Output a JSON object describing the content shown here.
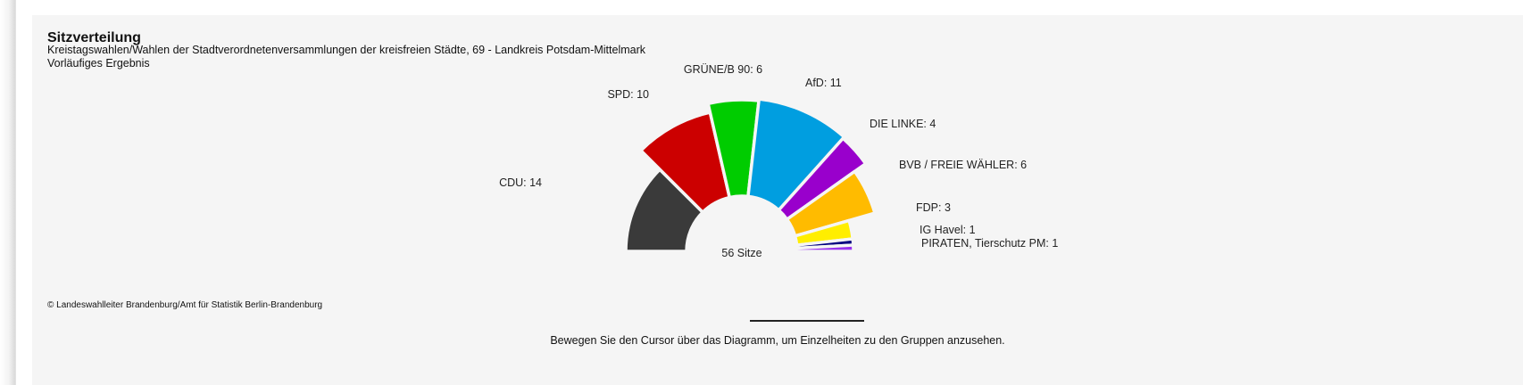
{
  "header": {
    "title": "Sitzverteilung",
    "subtitle": "Kreistagswahlen/Wahlen der Stadtverordnetenversammlungen der kreisfreien Städte, 69 - Landkreis Potsdam-Mittelmark",
    "status": "Vorläufiges Ergebnis"
  },
  "footer": {
    "copyright": "© Landeswahlleiter Brandenburg/Amt für Statistik Berlin-Brandenburg",
    "hint": "Bewegen Sie den Cursor über das Diagramm, um Einzelheiten zu den Gruppen anzusehen."
  },
  "chart_data": {
    "type": "parliament-semicircle",
    "center_label": "56 Sitze",
    "total_seats": 56,
    "parties": [
      {
        "name": "CDU",
        "seats": 14,
        "label": "CDU: 14",
        "color": "#3a3a3a"
      },
      {
        "name": "SPD",
        "seats": 10,
        "label": "SPD: 10",
        "color": "#cc0000"
      },
      {
        "name": "GRÜNE/B 90",
        "seats": 6,
        "label": "GRÜNE/B 90: 6",
        "color": "#00cc00"
      },
      {
        "name": "AfD",
        "seats": 11,
        "label": "AfD: 11",
        "color": "#009ee0"
      },
      {
        "name": "DIE LINKE",
        "seats": 4,
        "label": "DIE LINKE: 4",
        "color": "#9900cc"
      },
      {
        "name": "BVB / FREIE WÄHLER",
        "seats": 6,
        "label": "BVB / FREIE WÄHLER: 6",
        "color": "#ffbb00"
      },
      {
        "name": "FDP",
        "seats": 3,
        "label": "FDP: 3",
        "color": "#ffee00"
      },
      {
        "name": "IG Havel",
        "seats": 1,
        "label": "IG Havel: 1",
        "color": "#000080"
      },
      {
        "name": "PIRATEN, Tierschutz PM",
        "seats": 1,
        "label": "PIRATEN, Tierschutz PM: 1",
        "color": "#9933ee"
      }
    ]
  }
}
